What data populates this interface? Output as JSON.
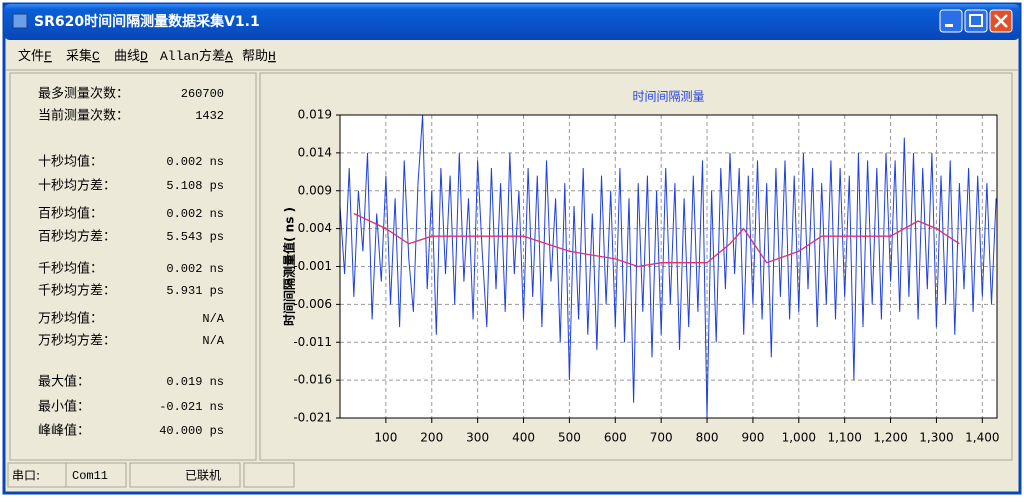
{
  "window": {
    "title": "SR620时间间隔测量数据采集V1.1"
  },
  "menu": [
    {
      "label": "文件",
      "key": "F"
    },
    {
      "label": "采集",
      "key": "C"
    },
    {
      "label": "曲线",
      "key": "D"
    },
    {
      "label": "Allan方差",
      "key": "A"
    },
    {
      "label": "帮助",
      "key": "H"
    }
  ],
  "stats": [
    {
      "label": "最多测量次数：",
      "value": "260700"
    },
    {
      "label": "当前测量次数：",
      "value": "1432"
    },
    {
      "label": "十秒均值：",
      "value": "0.002 ns"
    },
    {
      "label": "十秒均方差：",
      "value": "5.108 ps"
    },
    {
      "label": "百秒均值：",
      "value": "0.002 ns"
    },
    {
      "label": "百秒均方差：",
      "value": "5.543 ps"
    },
    {
      "label": "千秒均值：",
      "value": "0.002 ns"
    },
    {
      "label": "千秒均方差：",
      "value": "5.931 ps"
    },
    {
      "label": "万秒均值：",
      "value": "N/A"
    },
    {
      "label": "万秒均方差：",
      "value": "N/A"
    },
    {
      "label": "最大值：",
      "value": "0.019 ns"
    },
    {
      "label": "最小值：",
      "value": "-0.021 ns"
    },
    {
      "label": "峰峰值：",
      "value": "40.000 ps"
    }
  ],
  "status_bar": [
    "串口:",
    "Com11",
    "已联机"
  ],
  "chart_data": {
    "type": "line",
    "title": "时间间隔测量",
    "y_label": "时间间隔测量值( ns )",
    "xlim": [
      0,
      1432
    ],
    "ylim": [
      -0.021,
      0.019
    ],
    "grid": true,
    "xticks": [
      100,
      200,
      300,
      400,
      500,
      600,
      700,
      800,
      900,
      {
        "value": 1000,
        "label": "1,000"
      },
      {
        "value": 1100,
        "label": "1,100"
      },
      {
        "value": 1200,
        "label": "1,200"
      },
      {
        "value": 1300,
        "label": "1,300"
      },
      {
        "value": 1400,
        "label": "1,400"
      }
    ],
    "yticks": [
      -0.021,
      -0.016,
      -0.011,
      -0.006,
      -0.001,
      0.004,
      0.009,
      0.014,
      0.019
    ],
    "series": [
      {
        "color": "#1f3fe0",
        "x": [
          0,
          10,
          20,
          30,
          40,
          50,
          60,
          70,
          80,
          90,
          100,
          110,
          120,
          130,
          140,
          150,
          160,
          170,
          180,
          190,
          200,
          210,
          220,
          230,
          240,
          250,
          260,
          270,
          280,
          290,
          300,
          310,
          320,
          330,
          340,
          350,
          360,
          370,
          380,
          390,
          400,
          410,
          420,
          430,
          440,
          450,
          460,
          470,
          480,
          490,
          500,
          510,
          520,
          530,
          540,
          550,
          560,
          570,
          580,
          590,
          600,
          610,
          620,
          630,
          640,
          650,
          660,
          670,
          680,
          690,
          700,
          710,
          720,
          730,
          740,
          750,
          760,
          770,
          780,
          790,
          800,
          810,
          820,
          830,
          840,
          850,
          860,
          870,
          880,
          890,
          900,
          910,
          920,
          930,
          940,
          950,
          960,
          970,
          980,
          990,
          1000,
          1010,
          1020,
          1030,
          1040,
          1050,
          1060,
          1070,
          1080,
          1090,
          1100,
          1110,
          1120,
          1130,
          1140,
          1150,
          1160,
          1170,
          1180,
          1190,
          1200,
          1210,
          1220,
          1230,
          1240,
          1250,
          1260,
          1270,
          1280,
          1290,
          1300,
          1310,
          1320,
          1330,
          1340,
          1350,
          1360,
          1370,
          1380,
          1390,
          1400,
          1410,
          1420,
          1430
        ],
        "values": [
          0.007,
          -0.002,
          0.012,
          -0.005,
          0.009,
          0.001,
          0.014,
          -0.008,
          0.006,
          -0.003,
          0.011,
          -0.006,
          0.008,
          -0.009,
          0.013,
          0.0,
          -0.007,
          0.01,
          0.019,
          -0.004,
          0.009,
          -0.01,
          0.012,
          -0.002,
          0.011,
          -0.006,
          0.014,
          -0.003,
          0.008,
          -0.008,
          0.013,
          0.001,
          -0.009,
          0.012,
          -0.004,
          0.01,
          -0.007,
          0.014,
          -0.002,
          0.009,
          -0.008,
          0.012,
          -0.005,
          0.011,
          -0.009,
          0.013,
          -0.003,
          0.008,
          -0.011,
          0.01,
          -0.016,
          0.007,
          -0.008,
          0.012,
          -0.01,
          0.006,
          -0.012,
          0.011,
          -0.006,
          0.009,
          -0.009,
          0.012,
          -0.011,
          0.008,
          -0.019,
          0.01,
          -0.007,
          0.011,
          -0.013,
          0.009,
          -0.01,
          0.012,
          -0.006,
          0.01,
          -0.012,
          0.008,
          -0.009,
          0.011,
          -0.007,
          0.013,
          -0.021,
          0.009,
          -0.011,
          0.012,
          -0.004,
          0.014,
          -0.002,
          0.012,
          -0.01,
          0.011,
          -0.006,
          0.013,
          -0.008,
          0.01,
          -0.013,
          0.012,
          -0.005,
          0.013,
          -0.008,
          0.011,
          -0.007,
          0.014,
          -0.004,
          0.012,
          -0.009,
          0.01,
          -0.006,
          0.013,
          -0.008,
          0.012,
          -0.005,
          0.011,
          -0.016,
          0.014,
          -0.009,
          0.013,
          -0.006,
          0.012,
          -0.008,
          0.014,
          -0.003,
          0.013,
          -0.007,
          0.016,
          -0.005,
          0.014,
          -0.008,
          0.012,
          -0.004,
          0.014,
          -0.009,
          0.011,
          -0.006,
          0.013,
          -0.01,
          0.01,
          -0.004,
          0.012,
          -0.007,
          0.011,
          -0.005,
          0.01,
          -0.006,
          0.008
        ]
      },
      {
        "color": "#e0306a",
        "x": [
          30,
          100,
          150,
          200,
          300,
          400,
          450,
          500,
          550,
          600,
          650,
          700,
          800,
          850,
          880,
          930,
          1000,
          1050,
          1100,
          1200,
          1260,
          1300,
          1350
        ],
        "values": [
          0.006,
          0.004,
          0.002,
          0.003,
          0.003,
          0.003,
          0.002,
          0.001,
          0.0005,
          0.0,
          -0.001,
          -0.0005,
          -0.0005,
          0.002,
          0.004,
          -0.0005,
          0.001,
          0.003,
          0.003,
          0.003,
          0.005,
          0.004,
          0.002
        ]
      }
    ]
  }
}
